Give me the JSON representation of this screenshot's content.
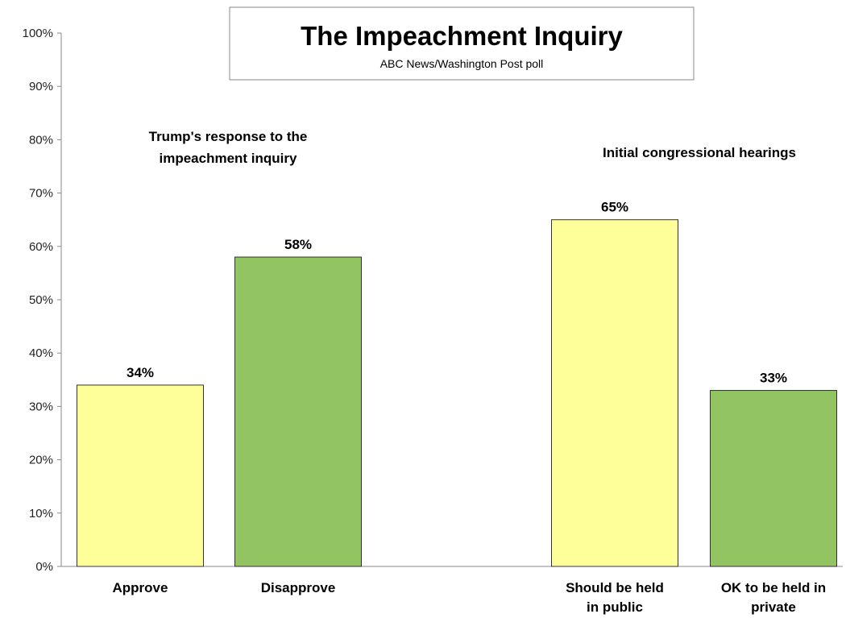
{
  "chart_data": {
    "type": "bar",
    "title": "The Impeachment Inquiry",
    "subtitle": "ABC News/Washington Post poll",
    "xlabel": "",
    "ylabel": "",
    "ylim": [
      0,
      100
    ],
    "y_ticks": [
      "0%",
      "10%",
      "20%",
      "30%",
      "40%",
      "50%",
      "60%",
      "70%",
      "80%",
      "90%",
      "100%"
    ],
    "grid": false,
    "groups": [
      {
        "label_lines": [
          "Trump's response to the",
          "impeachment inquiry"
        ],
        "bars": [
          {
            "category_lines": [
              "Approve"
            ],
            "value": 34,
            "data_label": "34%",
            "color": "#FFFF99"
          },
          {
            "category_lines": [
              "Disapprove"
            ],
            "value": 58,
            "data_label": "58%",
            "color": "#92C462"
          }
        ]
      },
      {
        "label_lines": [
          "Initial congressional hearings"
        ],
        "bars": [
          {
            "category_lines": [
              "Should be held",
              "in public"
            ],
            "value": 65,
            "data_label": "65%",
            "color": "#FFFF99"
          },
          {
            "category_lines": [
              "OK to be held in",
              "private"
            ],
            "value": 33,
            "data_label": "33%",
            "color": "#92C462"
          }
        ]
      }
    ]
  }
}
